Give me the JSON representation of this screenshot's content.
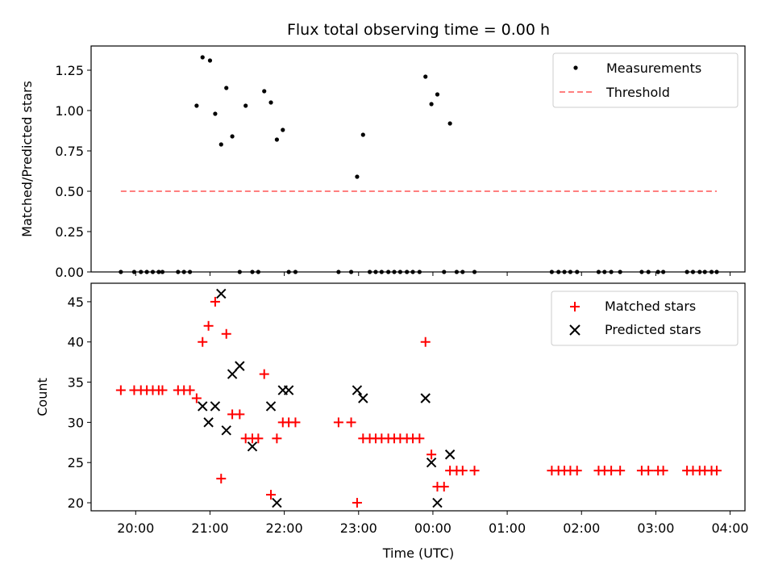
{
  "chart_data": [
    {
      "type": "scatter",
      "title": "Flux total observing time = 0.00 h",
      "xlabel": "",
      "ylabel": "Matched/Predicted stars",
      "xlim": [
        -0.6,
        8.2
      ],
      "ylim": [
        0,
        1.4
      ],
      "yticks": [
        0.0,
        0.25,
        0.5,
        0.75,
        1.0,
        1.25
      ],
      "ytick_labels": [
        "0.00",
        "0.25",
        "0.50",
        "0.75",
        "1.00",
        "1.25"
      ],
      "series": [
        {
          "name": "Measurements",
          "color": "#000000",
          "x": [
            -0.2,
            -0.02,
            0.07,
            0.15,
            0.23,
            0.31,
            0.36,
            0.57,
            0.65,
            0.73,
            0.82,
            0.9,
            1.0,
            1.07,
            1.15,
            1.22,
            1.3,
            1.4,
            1.48,
            1.57,
            1.65,
            1.73,
            1.82,
            1.9,
            1.98,
            2.06,
            2.15,
            2.73,
            2.9,
            2.98,
            3.06,
            3.15,
            3.23,
            3.31,
            3.4,
            3.48,
            3.56,
            3.65,
            3.73,
            3.82,
            3.9,
            3.98,
            4.06,
            4.15,
            4.23,
            4.32,
            4.4,
            4.56,
            5.6,
            5.69,
            5.77,
            5.85,
            5.94,
            6.23,
            6.31,
            6.4,
            6.52,
            6.81,
            6.9,
            7.03,
            7.1,
            7.42,
            7.5,
            7.59,
            7.66,
            7.75,
            7.82
          ],
          "y": [
            0,
            0,
            0,
            0,
            0,
            0,
            0,
            0,
            0,
            0,
            1.03,
            1.33,
            1.31,
            0.98,
            0.79,
            1.14,
            0.84,
            0,
            1.03,
            0,
            0,
            1.12,
            1.05,
            0.82,
            0.88,
            0,
            0,
            0,
            0,
            0.59,
            0.85,
            0,
            0,
            0,
            0,
            0,
            0,
            0,
            0,
            0,
            1.21,
            1.04,
            1.1,
            0,
            0.92,
            0,
            0,
            0,
            0,
            0,
            0,
            0,
            0,
            0,
            0,
            0,
            0,
            0,
            0,
            0,
            0,
            0,
            0,
            0,
            0,
            0,
            0
          ]
        },
        {
          "name": "Threshold",
          "color": "#ff7f7f",
          "x": [
            -0.2,
            7.82
          ],
          "y": [
            0.5,
            0.5
          ]
        }
      ]
    },
    {
      "type": "scatter",
      "title": "",
      "xlabel": "Time (UTC)",
      "ylabel": "Count",
      "xlim": [
        -0.6,
        8.2
      ],
      "ylim": [
        19,
        47.3
      ],
      "yticks": [
        20,
        25,
        30,
        35,
        40,
        45
      ],
      "ytick_labels": [
        "20",
        "25",
        "30",
        "35",
        "40",
        "45"
      ],
      "xticks": [
        0,
        1,
        2,
        3,
        4,
        5,
        6,
        7,
        8
      ],
      "xtick_labels": [
        "20:00",
        "21:00",
        "22:00",
        "23:00",
        "00:00",
        "01:00",
        "02:00",
        "03:00",
        "04:00"
      ],
      "series": [
        {
          "name": "Matched stars",
          "color": "#ff0000",
          "x": [
            -0.2,
            -0.02,
            0.07,
            0.15,
            0.23,
            0.31,
            0.36,
            0.57,
            0.65,
            0.73,
            0.82,
            0.9,
            0.98,
            1.07,
            1.15,
            1.22,
            1.3,
            1.4,
            1.48,
            1.57,
            1.65,
            1.73,
            1.82,
            1.9,
            1.98,
            2.06,
            2.15,
            2.73,
            2.9,
            2.98,
            3.06,
            3.15,
            3.23,
            3.31,
            3.4,
            3.48,
            3.56,
            3.65,
            3.73,
            3.82,
            3.9,
            3.98,
            4.06,
            4.15,
            4.23,
            4.32,
            4.4,
            4.56,
            5.6,
            5.69,
            5.77,
            5.85,
            5.94,
            6.23,
            6.31,
            6.4,
            6.52,
            6.81,
            6.9,
            7.03,
            7.1,
            7.42,
            7.5,
            7.59,
            7.66,
            7.75,
            7.82
          ],
          "y": [
            34,
            34,
            34,
            34,
            34,
            34,
            34,
            34,
            34,
            34,
            33,
            40,
            42,
            45,
            23,
            41,
            31,
            31,
            28,
            28,
            28,
            36,
            21,
            28,
            30,
            30,
            30,
            30,
            30,
            20,
            28,
            28,
            28,
            28,
            28,
            28,
            28,
            28,
            28,
            28,
            40,
            26,
            22,
            22,
            24,
            24,
            24,
            24,
            24,
            24,
            24,
            24,
            24,
            24,
            24,
            24,
            24,
            24,
            24,
            24,
            24,
            24,
            24,
            24,
            24,
            24,
            24
          ]
        },
        {
          "name": "Predicted stars",
          "color": "#000000",
          "x": [
            0.9,
            0.98,
            1.07,
            1.15,
            1.22,
            1.3,
            1.4,
            1.57,
            1.82,
            1.9,
            1.98,
            2.06,
            2.98,
            3.06,
            3.9,
            3.98,
            4.06,
            4.23
          ],
          "y": [
            32,
            30,
            32,
            46,
            29,
            36,
            37,
            27,
            32,
            20,
            34,
            34,
            34,
            33,
            33,
            25,
            20,
            26
          ]
        }
      ]
    }
  ]
}
